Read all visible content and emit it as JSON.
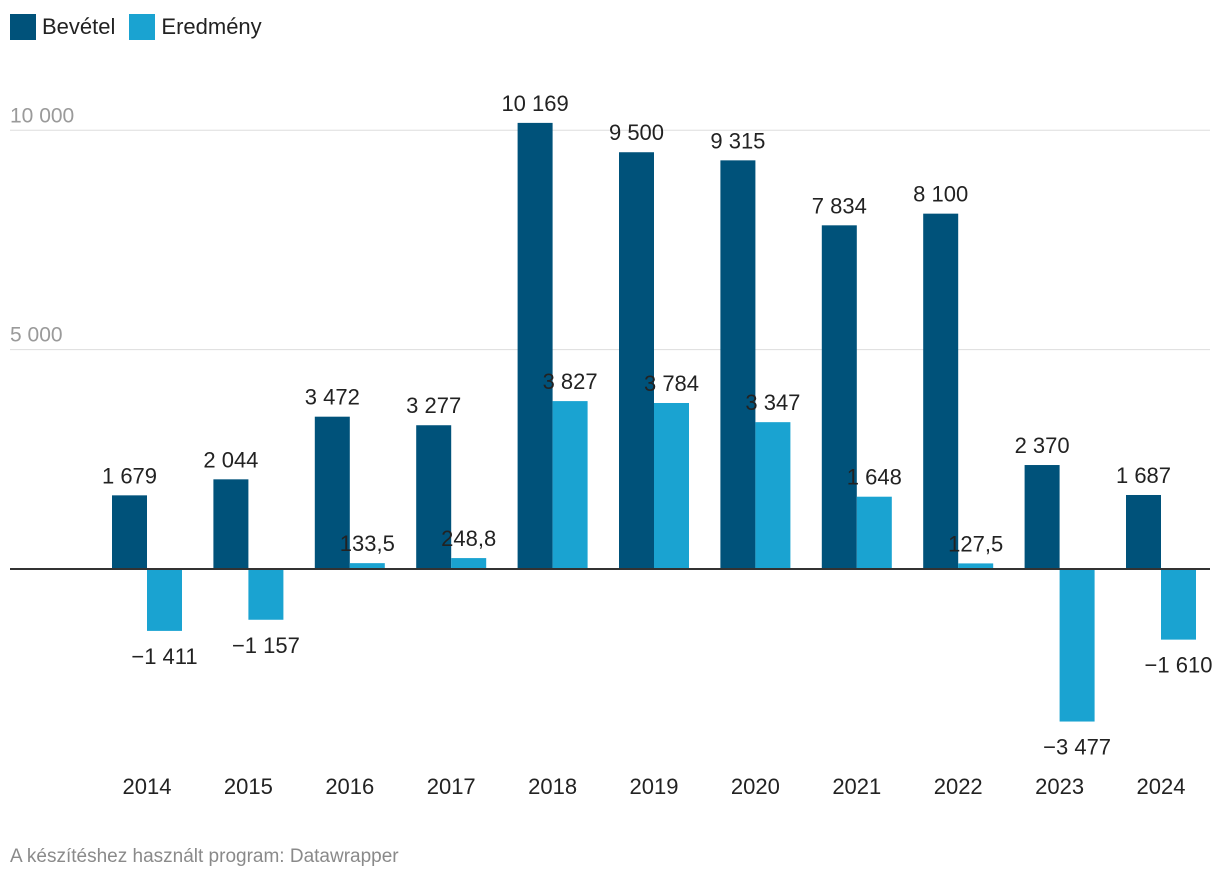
{
  "legend": [
    {
      "label": "Bevétel",
      "color": "#00527a"
    },
    {
      "label": "Eredmény",
      "color": "#1aa3d1"
    }
  ],
  "footer": "A készítéshez használt program: Datawrapper",
  "chart_data": {
    "type": "bar",
    "title": "",
    "xlabel": "",
    "ylabel": "",
    "ylim": [
      -4000,
      11000
    ],
    "yticks": [
      0,
      5000,
      10000
    ],
    "ytick_labels": [
      "",
      "5 000",
      "10 000"
    ],
    "categories": [
      "2014",
      "2015",
      "2016",
      "2017",
      "2018",
      "2019",
      "2020",
      "2021",
      "2022",
      "2023",
      "2024"
    ],
    "series": [
      {
        "name": "Bevétel",
        "color": "#00527a",
        "values": [
          1679,
          2044,
          3472,
          3277,
          10169,
          9500,
          9315,
          7834,
          8100,
          2370,
          1687
        ],
        "labels": [
          "1 679",
          "2 044",
          "3 472",
          "3 277",
          "10 169",
          "9 500",
          "9 315",
          "7 834",
          "8 100",
          "2 370",
          "1 687"
        ]
      },
      {
        "name": "Eredmény",
        "color": "#1aa3d1",
        "values": [
          -1411,
          -1157,
          133.5,
          248.8,
          3827,
          3784,
          3347,
          1648,
          127.5,
          -3477,
          -1610
        ],
        "labels": [
          "−1 411",
          "−1 157",
          "133,5",
          "248,8",
          "3 827",
          "3 784",
          "3 347",
          "1 648",
          "127,5",
          "−3 477",
          "−1 610"
        ]
      }
    ],
    "grid": true,
    "legend_position": "top-left"
  }
}
